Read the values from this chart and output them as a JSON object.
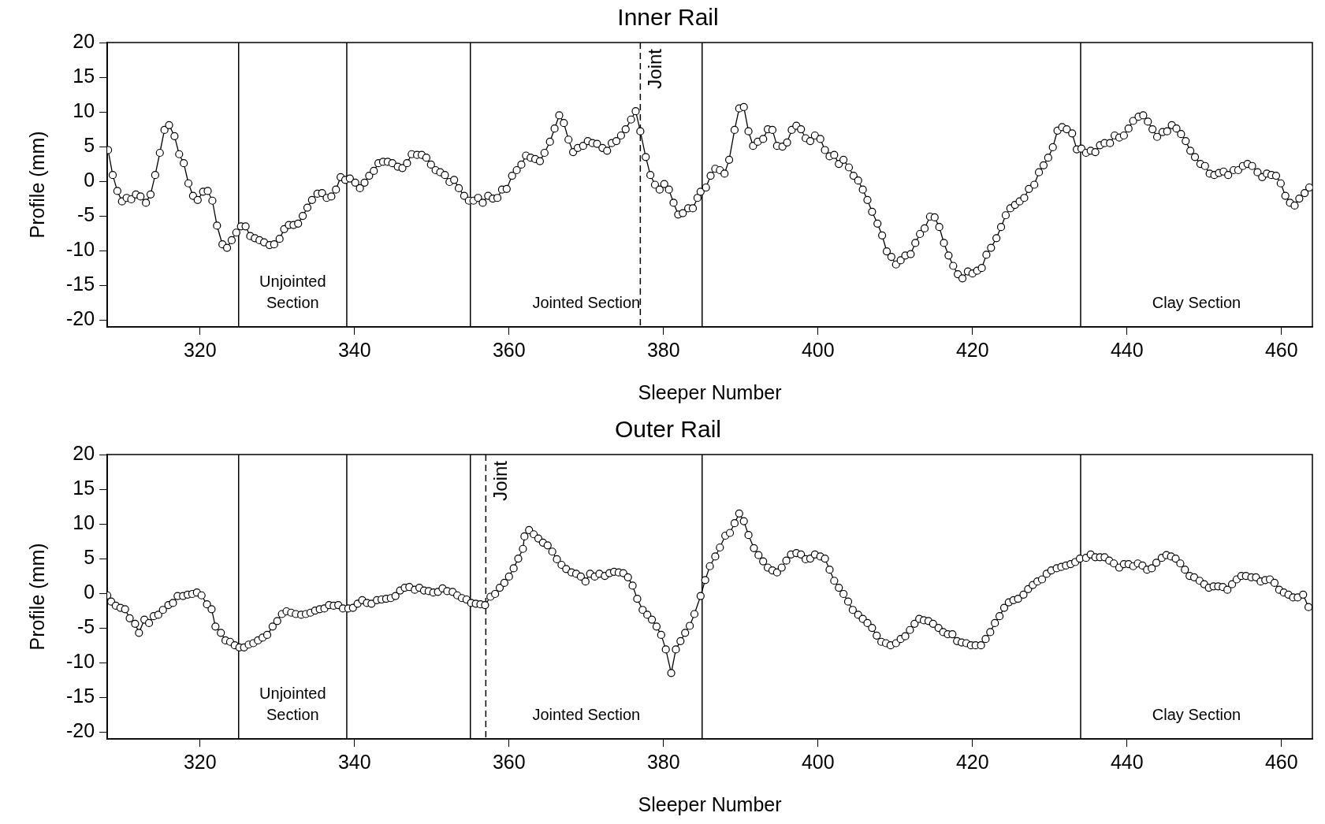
{
  "chart_data": [
    {
      "type": "line",
      "title": "Inner Rail",
      "xlabel": "Sleeper Number",
      "ylabel": "Profile (mm)",
      "color": "#000000",
      "marker": "circle",
      "x": [
        308.1,
        308.7,
        309.3,
        309.9,
        310.5,
        311.1,
        311.7,
        312.3,
        313.0,
        313.6,
        314.2,
        314.8,
        315.4,
        316.0,
        316.7,
        317.3,
        317.9,
        318.5,
        319.1,
        319.7,
        320.4,
        321.0,
        321.6,
        322.2,
        322.9,
        323.5,
        324.1,
        324.7,
        325.3,
        325.9,
        326.5,
        327.1,
        327.7,
        328.3,
        329.0,
        329.6,
        330.3,
        330.9,
        331.5,
        332.1,
        332.7,
        333.3,
        333.9,
        334.5,
        335.2,
        335.8,
        336.4,
        337.0,
        337.6,
        338.2,
        338.8,
        339.4,
        340.1,
        340.7,
        341.3,
        341.9,
        342.5,
        343.1,
        343.7,
        344.3,
        344.9,
        345.6,
        346.2,
        346.8,
        347.4,
        348.1,
        348.7,
        349.3,
        349.9,
        350.5,
        351.1,
        351.7,
        352.3,
        352.9,
        353.5,
        354.2,
        354.8,
        355.4,
        356.0,
        356.6,
        357.3,
        357.9,
        358.5,
        359.1,
        359.7,
        360.4,
        361.0,
        361.6,
        362.2,
        362.8,
        363.4,
        364.0,
        364.6,
        365.3,
        365.9,
        366.5,
        367.1,
        367.7,
        368.3,
        368.9,
        369.6,
        370.2,
        370.8,
        371.4,
        372.1,
        372.7,
        373.3,
        373.9,
        374.5,
        375.1,
        375.8,
        376.4,
        377.0,
        377.7,
        378.3,
        378.9,
        379.5,
        380.1,
        380.7,
        381.3,
        381.9,
        382.5,
        383.2,
        383.8,
        384.4,
        384.8,
        385.5,
        386.1,
        386.7,
        387.3,
        387.9,
        388.5,
        389.2,
        389.8,
        390.4,
        391.0,
        391.6,
        392.2,
        392.9,
        393.5,
        394.1,
        394.7,
        395.4,
        396.0,
        396.6,
        397.2,
        397.8,
        398.4,
        399.0,
        399.6,
        400.3,
        400.9,
        401.5,
        402.1,
        402.7,
        403.3,
        404.0,
        404.6,
        405.2,
        405.8,
        406.4,
        407.0,
        407.7,
        408.3,
        408.9,
        409.5,
        410.1,
        410.7,
        411.3,
        412.0,
        412.6,
        413.2,
        413.8,
        414.5,
        415.1,
        415.7,
        416.3,
        416.9,
        417.5,
        418.1,
        418.7,
        419.4,
        420.0,
        420.6,
        421.2,
        421.8,
        422.4,
        423.1,
        423.7,
        424.3,
        424.9,
        425.5,
        426.1,
        426.7,
        427.3,
        428.0,
        428.6,
        429.2,
        429.8,
        430.4,
        431.0,
        431.6,
        432.2,
        432.9,
        433.5,
        434.1,
        434.7,
        435.3,
        435.9,
        436.5,
        437.1,
        437.8,
        438.4,
        439.0,
        439.6,
        440.2,
        440.8,
        441.5,
        442.1,
        442.7,
        443.3,
        443.9,
        444.6,
        445.2,
        445.8,
        446.4,
        447.0,
        447.6,
        448.2,
        448.8,
        449.5,
        450.1,
        450.7,
        451.3,
        451.9,
        452.5,
        453.1,
        453.8,
        454.4,
        455.0,
        455.6,
        456.2,
        456.9,
        457.5,
        458.1,
        458.7,
        459.3,
        459.9,
        460.5,
        461.1,
        461.7,
        462.3,
        463.0,
        463.6
      ],
      "values": [
        4.5,
        0.9,
        -1.4,
        -2.9,
        -2.4,
        -2.6,
        -1.9,
        -2.2,
        -3.1,
        -1.9,
        0.9,
        4.1,
        7.4,
        8.1,
        6.5,
        3.9,
        2.6,
        -0.3,
        -2.1,
        -2.7,
        -1.5,
        -1.4,
        -2.8,
        -6.4,
        -9.1,
        -9.6,
        -8.5,
        -7.4,
        -6.5,
        -6.5,
        -7.9,
        -8.2,
        -8.5,
        -8.8,
        -9.2,
        -9.1,
        -8.3,
        -6.9,
        -6.3,
        -6.3,
        -6.1,
        -5.0,
        -3.8,
        -2.7,
        -1.8,
        -1.7,
        -2.4,
        -2.2,
        -1.2,
        0.6,
        0.2,
        0.4,
        -0.2,
        -1.0,
        -0.2,
        0.8,
        1.5,
        2.6,
        2.8,
        2.8,
        2.6,
        2.1,
        1.9,
        2.6,
        3.9,
        3.8,
        3.8,
        3.4,
        2.4,
        1.6,
        1.3,
        0.9,
        -0.1,
        0.2,
        -1.0,
        -2.1,
        -2.8,
        -2.8,
        -2.4,
        -3.1,
        -2.1,
        -2.5,
        -2.4,
        -1.2,
        -1.1,
        0.8,
        1.6,
        2.4,
        3.7,
        3.4,
        3.2,
        2.9,
        4.1,
        5.7,
        7.6,
        9.5,
        8.4,
        6.0,
        4.2,
        4.8,
        5.1,
        5.8,
        5.5,
        5.4,
        4.8,
        4.4,
        5.5,
        5.8,
        6.6,
        7.5,
        8.9,
        10.1,
        7.2,
        3.5,
        0.9,
        -0.5,
        -1.2,
        -0.4,
        -1.2,
        -3.1,
        -4.8,
        -4.6,
        -3.9,
        -3.9,
        -2.4,
        -1.5,
        -0.9,
        0.8,
        1.8,
        1.6,
        1.1,
        3.1,
        7.4,
        10.5,
        10.7,
        7.2,
        5.1,
        5.7,
        6.1,
        7.5,
        7.4,
        5.1,
        5.0,
        5.6,
        7.4,
        8.0,
        7.5,
        6.2,
        5.8,
        6.6,
        6.1,
        4.5,
        3.6,
        3.8,
        2.5,
        3.1,
        2.0,
        0.8,
        0.1,
        -1.2,
        -2.7,
        -4.4,
        -6.1,
        -7.8,
        -10.1,
        -10.9,
        -12.0,
        -11.4,
        -10.7,
        -10.5,
        -8.9,
        -7.6,
        -6.8,
        -5.1,
        -5.2,
        -6.6,
        -8.9,
        -10.7,
        -12.2,
        -13.4,
        -14.0,
        -13.0,
        -13.3,
        -12.9,
        -12.5,
        -10.6,
        -9.6,
        -8.2,
        -6.6,
        -4.9,
        -3.9,
        -3.4,
        -2.9,
        -2.4,
        -1.1,
        -0.5,
        1.3,
        2.3,
        3.4,
        4.9,
        7.3,
        7.8,
        7.5,
        6.9,
        4.6,
        4.7,
        4.1,
        4.4,
        4.2,
        5.2,
        5.5,
        5.5,
        6.6,
        6.3,
        6.6,
        7.6,
        8.7,
        9.3,
        9.5,
        8.6,
        7.5,
        6.4,
        7.1,
        7.2,
        8.1,
        7.6,
        6.8,
        5.8,
        4.4,
        3.5,
        2.5,
        2.2,
        1.1,
        0.9,
        1.2,
        1.4,
        0.9,
        1.6,
        1.6,
        2.2,
        2.5,
        2.2,
        1.3,
        0.6,
        1.1,
        0.9,
        0.8,
        -0.3,
        -2.1,
        -3.1,
        -3.5,
        -2.5,
        -1.7,
        -0.9
      ],
      "xlim": [
        308,
        464
      ],
      "ylim": [
        -21,
        20
      ],
      "xticks": [
        320,
        340,
        360,
        380,
        400,
        420,
        440,
        460
      ],
      "yticks": [
        -20,
        -15,
        -10,
        -5,
        0,
        5,
        10,
        15,
        20
      ],
      "ref_lines": [
        {
          "axis": "x",
          "value": 325
        },
        {
          "axis": "x",
          "value": 339
        },
        {
          "axis": "x",
          "value": 355
        },
        {
          "axis": "x",
          "value": 377,
          "label": "Joint",
          "line_style": "dashed"
        },
        {
          "axis": "x",
          "value": 385
        },
        {
          "axis": "x",
          "value": 434
        }
      ],
      "annotations": [
        "Unjointed Section",
        "Jointed Section",
        "Clay Section"
      ]
    },
    {
      "type": "line",
      "title": "Outer Rail",
      "xlabel": "Sleeper Number",
      "ylabel": "Profile (mm)",
      "color": "#000000",
      "marker": "circle",
      "x": [
        308.0,
        308.5,
        309.1,
        309.7,
        310.3,
        310.9,
        311.6,
        312.1,
        312.8,
        313.4,
        314.0,
        314.6,
        315.2,
        315.9,
        316.5,
        317.1,
        317.8,
        318.4,
        319.0,
        319.6,
        320.2,
        320.9,
        321.5,
        322.0,
        322.7,
        323.3,
        323.9,
        324.5,
        325.1,
        325.7,
        326.3,
        326.9,
        327.5,
        328.1,
        328.7,
        329.4,
        330.0,
        330.6,
        331.2,
        331.8,
        332.4,
        333.1,
        333.7,
        334.3,
        334.9,
        335.5,
        336.1,
        336.7,
        337.3,
        337.9,
        338.5,
        339.2,
        339.8,
        340.4,
        341.0,
        341.6,
        342.2,
        342.9,
        343.5,
        344.1,
        344.7,
        345.3,
        345.9,
        346.5,
        347.1,
        347.8,
        348.4,
        349.0,
        349.6,
        350.2,
        350.8,
        351.4,
        352.0,
        352.7,
        353.3,
        353.9,
        354.5,
        355.1,
        355.7,
        356.3,
        356.9,
        357.6,
        358.2,
        358.8,
        359.4,
        360.0,
        360.6,
        361.2,
        361.8,
        362.0,
        362.6,
        363.2,
        363.8,
        364.4,
        365.0,
        365.6,
        366.2,
        366.8,
        367.4,
        368.1,
        368.7,
        369.3,
        369.9,
        370.5,
        371.1,
        371.7,
        372.4,
        373.0,
        373.6,
        374.2,
        374.8,
        375.4,
        376.0,
        376.6,
        377.3,
        377.9,
        378.5,
        379.1,
        379.7,
        380.3,
        381.0,
        381.6,
        382.2,
        382.8,
        383.4,
        384.0,
        384.8,
        385.4,
        386.0,
        386.7,
        387.3,
        388.0,
        388.6,
        389.2,
        389.8,
        390.4,
        391.0,
        391.7,
        392.3,
        392.9,
        393.5,
        394.1,
        394.7,
        395.3,
        395.9,
        396.5,
        397.2,
        397.8,
        398.4,
        399.0,
        399.6,
        400.3,
        400.9,
        401.5,
        402.1,
        402.7,
        403.3,
        403.9,
        404.5,
        405.2,
        405.8,
        406.4,
        407.0,
        407.6,
        408.2,
        408.8,
        409.4,
        410.1,
        410.7,
        411.3,
        411.9,
        412.5,
        413.1,
        413.7,
        414.3,
        414.9,
        415.6,
        416.2,
        416.8,
        417.4,
        418.0,
        418.6,
        419.2,
        419.8,
        420.4,
        421.1,
        421.7,
        422.3,
        422.9,
        423.5,
        424.1,
        424.7,
        425.3,
        425.9,
        426.6,
        427.2,
        427.8,
        428.4,
        429.0,
        429.6,
        430.2,
        430.9,
        431.5,
        432.1,
        432.7,
        433.3,
        433.9,
        434.7,
        435.3,
        435.9,
        436.5,
        437.1,
        437.7,
        438.3,
        439.0,
        439.6,
        440.2,
        440.8,
        441.4,
        442.0,
        442.6,
        443.2,
        443.8,
        444.5,
        445.1,
        445.7,
        446.3,
        446.9,
        447.5,
        448.1,
        448.7,
        449.4,
        450.0,
        450.6,
        451.2,
        451.8,
        452.4,
        453.0,
        453.6,
        454.2,
        454.8,
        455.4,
        456.1,
        456.7,
        457.3,
        457.9,
        458.5,
        459.1,
        459.7,
        460.3,
        460.9,
        461.5,
        462.1,
        462.8,
        463.5
      ],
      "values": [
        -0.3,
        -1.2,
        -1.8,
        -2.1,
        -2.3,
        -3.6,
        -4.4,
        -5.7,
        -3.8,
        -4.3,
        -3.3,
        -3.1,
        -2.4,
        -1.7,
        -1.4,
        -0.4,
        -0.4,
        -0.2,
        -0.1,
        0.1,
        -0.3,
        -1.6,
        -2.3,
        -4.8,
        -5.7,
        -6.8,
        -7.0,
        -7.5,
        -7.8,
        -7.8,
        -7.4,
        -7.2,
        -6.8,
        -6.4,
        -6.0,
        -4.8,
        -4.0,
        -3.0,
        -2.6,
        -2.8,
        -3.0,
        -3.1,
        -3.0,
        -2.8,
        -2.5,
        -2.3,
        -2.2,
        -1.7,
        -1.8,
        -1.7,
        -2.2,
        -2.2,
        -2.1,
        -1.5,
        -1.0,
        -1.4,
        -1.5,
        -1.0,
        -0.9,
        -0.8,
        -0.7,
        -0.4,
        0.4,
        0.8,
        0.9,
        0.5,
        0.8,
        0.4,
        0.3,
        0.1,
        0.2,
        0.7,
        0.3,
        0.2,
        -0.3,
        -0.7,
        -0.9,
        -1.4,
        -1.5,
        -1.6,
        -1.7,
        -0.5,
        -0.1,
        0.8,
        1.5,
        2.4,
        3.6,
        5.0,
        6.4,
        8.2,
        9.1,
        8.5,
        7.9,
        7.3,
        6.9,
        6.0,
        4.9,
        4.1,
        3.5,
        3.0,
        2.8,
        2.4,
        1.7,
        2.8,
        2.4,
        2.8,
        2.5,
        2.9,
        3.1,
        3.0,
        2.9,
        2.3,
        1.1,
        -0.8,
        -2.4,
        -3.1,
        -3.8,
        -4.8,
        -6.0,
        -8.1,
        -11.5,
        -8.1,
        -6.9,
        -5.7,
        -4.7,
        -3.0,
        -0.4,
        1.9,
        3.9,
        5.3,
        6.6,
        8.3,
        8.7,
        10.1,
        11.5,
        10.4,
        8.4,
        6.5,
        5.5,
        4.6,
        3.7,
        3.3,
        3.0,
        3.7,
        4.7,
        5.6,
        5.8,
        5.6,
        4.9,
        5.0,
        5.6,
        5.3,
        5.0,
        3.4,
        1.8,
        0.8,
        -0.1,
        -1.2,
        -2.4,
        -3.1,
        -3.7,
        -4.3,
        -5.0,
        -6.1,
        -7.0,
        -7.2,
        -7.5,
        -7.2,
        -6.6,
        -6.2,
        -5.3,
        -4.4,
        -3.7,
        -3.9,
        -4.0,
        -4.4,
        -5.0,
        -5.6,
        -5.9,
        -5.9,
        -6.9,
        -7.1,
        -7.2,
        -7.5,
        -7.5,
        -7.5,
        -6.6,
        -5.6,
        -4.3,
        -3.3,
        -2.1,
        -1.3,
        -1.0,
        -0.8,
        -0.2,
        0.6,
        1.2,
        1.7,
        2.0,
        2.8,
        3.3,
        3.6,
        3.8,
        4.0,
        4.2,
        4.5,
        5.0,
        5.1,
        5.6,
        5.2,
        5.2,
        5.2,
        4.7,
        4.3,
        3.7,
        4.2,
        4.2,
        3.9,
        4.3,
        4.0,
        3.4,
        3.6,
        4.4,
        5.1,
        5.5,
        5.3,
        5.0,
        4.3,
        3.4,
        2.5,
        2.3,
        1.8,
        1.3,
        0.8,
        1.0,
        1.0,
        0.9,
        0.5,
        1.3,
        2.0,
        2.5,
        2.5,
        2.3,
        2.3,
        1.7,
        1.9,
        2.0,
        1.5,
        0.5,
        0.1,
        -0.2,
        -0.6,
        -0.6,
        -0.2,
        -2.0
      ],
      "xlim": [
        308,
        464
      ],
      "ylim": [
        -21,
        20
      ],
      "xticks": [
        320,
        340,
        360,
        380,
        400,
        420,
        440,
        460
      ],
      "yticks": [
        -20,
        -15,
        -10,
        -5,
        0,
        5,
        10,
        15,
        20
      ],
      "ref_lines": [
        {
          "axis": "x",
          "value": 325
        },
        {
          "axis": "x",
          "value": 339
        },
        {
          "axis": "x",
          "value": 355
        },
        {
          "axis": "x",
          "value": 357,
          "label": "Joint",
          "line_style": "dashed"
        },
        {
          "axis": "x",
          "value": 385
        },
        {
          "axis": "x",
          "value": 434
        }
      ],
      "annotations": [
        "Unjointed Section",
        "Jointed Section",
        "Clay Section"
      ]
    }
  ]
}
